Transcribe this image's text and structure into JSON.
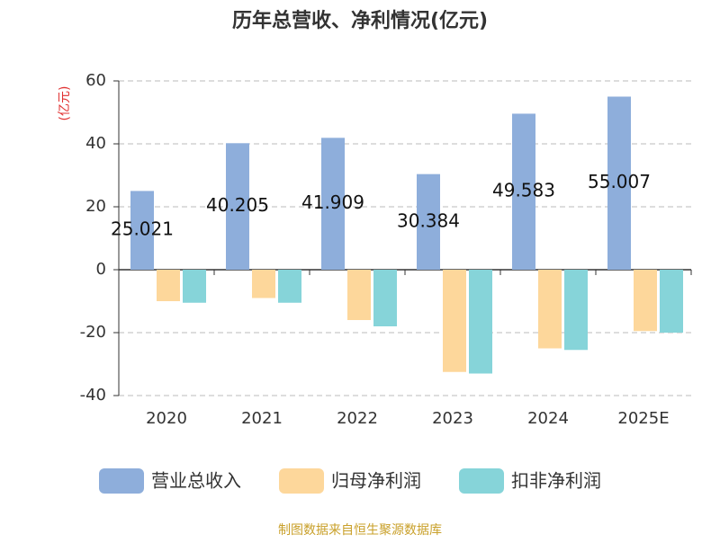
{
  "chart_data": {
    "type": "bar",
    "title": "历年总营收、净利情况(亿元)",
    "y_label": "(亿元)",
    "categories": [
      "2020",
      "2021",
      "2022",
      "2023",
      "2024",
      "2025E"
    ],
    "series": [
      {
        "name": "营业总收入",
        "color": "#8eaedb",
        "values": [
          25.021,
          40.205,
          41.909,
          30.384,
          49.583,
          55.007
        ]
      },
      {
        "name": "归母净利润",
        "color": "#fdd79b",
        "values": [
          -10,
          -9,
          -16,
          -32.5,
          -25,
          -19.5
        ]
      },
      {
        "name": "扣非净利润",
        "color": "#86d4d9",
        "values": [
          -10.5,
          -10.5,
          -18,
          -33,
          -25.5,
          -20
        ]
      }
    ],
    "ylim": [
      -40,
      60
    ],
    "yticks": [
      -40,
      -20,
      0,
      20,
      40,
      60
    ],
    "grid": true,
    "source": "制图数据来自恒生聚源数据库"
  }
}
